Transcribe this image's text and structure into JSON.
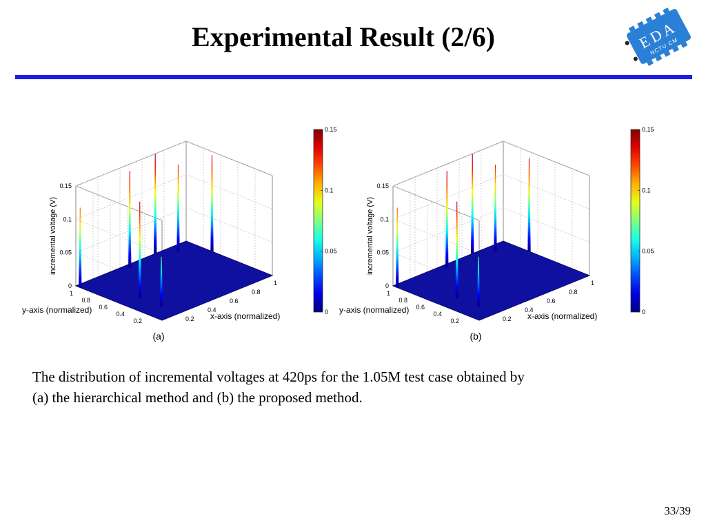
{
  "slide": {
    "title": "Experimental Result (2/6)",
    "caption_line1": "The distribution of incremental voltages at 420ps for the 1.05M test case obtained by",
    "caption_line2": "(a) the hierarchical method and (b) the proposed  method.",
    "page_number": "33/39",
    "logo": {
      "text": "EDA",
      "subtext": "NCTU CM",
      "color": "#2a7fd6"
    },
    "rule_color": "#1c1ce6"
  },
  "chart_data": [
    {
      "type": "surface3d",
      "panel_label": "(a)",
      "zlabel": "incremental voltage (V)",
      "xlabel": "x-axis (normalized)",
      "ylabel": "y-axis (normalized)",
      "z_ticks": [
        "0",
        "0.05",
        "0.1",
        "0.15"
      ],
      "x_ticks": [
        "0.2",
        "0.4",
        "0.6",
        "0.8",
        "1"
      ],
      "y_ticks": [
        "0.2",
        "0.4",
        "0.6",
        "0.8",
        "1"
      ],
      "zlim": [
        0,
        0.15
      ],
      "xlim": [
        0,
        1
      ],
      "ylim": [
        0,
        1
      ],
      "colorbar": {
        "ticks": [
          "0",
          "0.05",
          "0.1",
          "0.15"
        ],
        "range": [
          0,
          0.15
        ],
        "colormap": "jet"
      },
      "base_color": "#1010a0",
      "peaks": [
        {
          "x": 0.0,
          "y": 0.95,
          "z": 0.12
        },
        {
          "x": 0.45,
          "y": 0.95,
          "z": 0.145
        },
        {
          "x": 0.72,
          "y": 1.0,
          "z": 0.15
        },
        {
          "x": 0.15,
          "y": 0.45,
          "z": 0.145
        },
        {
          "x": 0.15,
          "y": 0.2,
          "z": 0.075
        },
        {
          "x": 1.0,
          "y": 0.7,
          "z": 0.145
        },
        {
          "x": 0.85,
          "y": 0.9,
          "z": 0.13
        }
      ]
    },
    {
      "type": "surface3d",
      "panel_label": "(b)",
      "zlabel": "incremental voltage (V)",
      "xlabel": "x-axis (normalized)",
      "ylabel": "y-axis (normalized)",
      "z_ticks": [
        "0",
        "0.05",
        "0.1",
        "0.15"
      ],
      "x_ticks": [
        "0.2",
        "0.4",
        "0.6",
        "0.8",
        "1"
      ],
      "y_ticks": [
        "0.2",
        "0.4",
        "0.6",
        "0.8",
        "1"
      ],
      "zlim": [
        0,
        0.15
      ],
      "xlim": [
        0,
        1
      ],
      "ylim": [
        0,
        1
      ],
      "colorbar": {
        "ticks": [
          "0",
          "0.05",
          "0.1",
          "0.15"
        ],
        "range": [
          0,
          0.15
        ],
        "colormap": "jet"
      },
      "base_color": "#1010a0",
      "peaks": [
        {
          "x": 0.0,
          "y": 0.95,
          "z": 0.12
        },
        {
          "x": 0.45,
          "y": 0.95,
          "z": 0.145
        },
        {
          "x": 0.72,
          "y": 1.0,
          "z": 0.15
        },
        {
          "x": 0.15,
          "y": 0.45,
          "z": 0.145
        },
        {
          "x": 0.15,
          "y": 0.2,
          "z": 0.075
        },
        {
          "x": 1.0,
          "y": 0.7,
          "z": 0.14
        },
        {
          "x": 0.85,
          "y": 0.9,
          "z": 0.13
        }
      ]
    }
  ]
}
